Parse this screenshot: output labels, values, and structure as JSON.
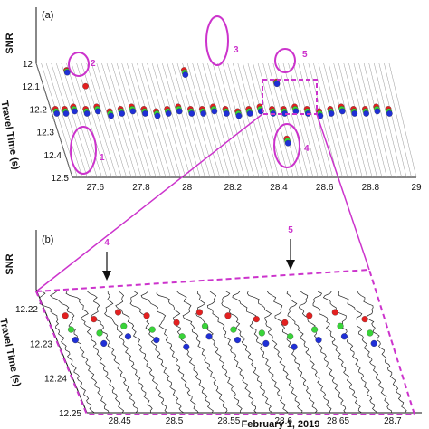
{
  "colors": {
    "magenta": "#cc33cc",
    "red": "#e32020",
    "green": "#39d439",
    "blue": "#1f2fd6",
    "trace": "#222222",
    "grid": "#9a9a9a"
  },
  "chart_data": [
    {
      "type": "scatter",
      "panel_label": "(a)",
      "xlabel": "",
      "ylabel": "Travel Time (s)",
      "zlabel": "SNR",
      "x_ticks": [
        "27.6",
        "27.8",
        "28",
        "28.2",
        "28.4",
        "28.6",
        "28.8",
        "29"
      ],
      "y_ticks": [
        "12",
        "12.1",
        "12.2",
        "12.3",
        "12.4",
        "12.5"
      ],
      "xlim": [
        27.5,
        29.0
      ],
      "ylim": [
        12.0,
        12.5
      ],
      "series": [
        {
          "color": "red",
          "points": [
            [
              27.52,
              12.2
            ],
            [
              27.56,
              12.2
            ],
            [
              27.6,
              12.19
            ],
            [
              27.65,
              12.2
            ],
            [
              27.7,
              12.19
            ],
            [
              27.75,
              12.21
            ],
            [
              27.8,
              12.2
            ],
            [
              27.85,
              12.19
            ],
            [
              27.9,
              12.2
            ],
            [
              27.95,
              12.21
            ],
            [
              28.0,
              12.2
            ],
            [
              28.05,
              12.19
            ],
            [
              28.1,
              12.2
            ],
            [
              28.15,
              12.2
            ],
            [
              28.2,
              12.19
            ],
            [
              28.25,
              12.2
            ],
            [
              28.3,
              12.21
            ],
            [
              28.35,
              12.2
            ],
            [
              28.4,
              12.19
            ],
            [
              28.45,
              12.2
            ],
            [
              28.5,
              12.2
            ],
            [
              28.55,
              12.19
            ],
            [
              28.6,
              12.2
            ],
            [
              28.65,
              12.21
            ],
            [
              28.7,
              12.2
            ],
            [
              28.75,
              12.19
            ],
            [
              28.8,
              12.2
            ],
            [
              28.85,
              12.2
            ],
            [
              28.9,
              12.19
            ],
            [
              28.95,
              12.2
            ],
            [
              27.62,
              12.03
            ],
            [
              27.68,
              12.1
            ],
            [
              28.12,
              12.03
            ],
            [
              28.48,
              12.33
            ],
            [
              28.5,
              12.08
            ]
          ]
        },
        {
          "color": "green",
          "points": [
            [
              27.52,
              12.21
            ],
            [
              27.56,
              12.21
            ],
            [
              27.6,
              12.2
            ],
            [
              27.65,
              12.21
            ],
            [
              27.7,
              12.2
            ],
            [
              27.75,
              12.22
            ],
            [
              27.8,
              12.21
            ],
            [
              27.85,
              12.2
            ],
            [
              27.9,
              12.21
            ],
            [
              27.95,
              12.22
            ],
            [
              28.0,
              12.21
            ],
            [
              28.05,
              12.2
            ],
            [
              28.1,
              12.21
            ],
            [
              28.15,
              12.21
            ],
            [
              28.2,
              12.2
            ],
            [
              28.25,
              12.21
            ],
            [
              28.3,
              12.22
            ],
            [
              28.35,
              12.21
            ],
            [
              28.4,
              12.2
            ],
            [
              28.45,
              12.21
            ],
            [
              28.5,
              12.21
            ],
            [
              28.55,
              12.2
            ],
            [
              28.6,
              12.21
            ],
            [
              28.65,
              12.22
            ],
            [
              28.7,
              12.21
            ],
            [
              28.75,
              12.2
            ],
            [
              28.8,
              12.21
            ],
            [
              28.85,
              12.21
            ],
            [
              28.9,
              12.2
            ],
            [
              28.95,
              12.21
            ],
            [
              27.62,
              12.035
            ],
            [
              28.12,
              12.04
            ],
            [
              28.48,
              12.34
            ],
            [
              28.5,
              12.085
            ]
          ]
        },
        {
          "color": "blue",
          "points": [
            [
              27.52,
              12.22
            ],
            [
              27.56,
              12.22
            ],
            [
              27.6,
              12.21
            ],
            [
              27.65,
              12.22
            ],
            [
              27.7,
              12.21
            ],
            [
              27.75,
              12.23
            ],
            [
              27.8,
              12.22
            ],
            [
              27.85,
              12.21
            ],
            [
              27.9,
              12.22
            ],
            [
              27.95,
              12.23
            ],
            [
              28.0,
              12.22
            ],
            [
              28.05,
              12.21
            ],
            [
              28.1,
              12.22
            ],
            [
              28.15,
              12.22
            ],
            [
              28.2,
              12.21
            ],
            [
              28.25,
              12.22
            ],
            [
              28.3,
              12.23
            ],
            [
              28.35,
              12.22
            ],
            [
              28.4,
              12.21
            ],
            [
              28.45,
              12.22
            ],
            [
              28.5,
              12.22
            ],
            [
              28.55,
              12.21
            ],
            [
              28.6,
              12.22
            ],
            [
              28.65,
              12.23
            ],
            [
              28.7,
              12.22
            ],
            [
              28.75,
              12.21
            ],
            [
              28.8,
              12.22
            ],
            [
              28.85,
              12.22
            ],
            [
              28.9,
              12.21
            ],
            [
              28.95,
              12.22
            ],
            [
              27.62,
              12.04
            ],
            [
              28.12,
              12.05
            ],
            [
              28.48,
              12.35
            ],
            [
              28.5,
              12.09
            ]
          ]
        }
      ],
      "annotations": [
        "1",
        "2",
        "3",
        "4",
        "5"
      ],
      "grid": true
    },
    {
      "type": "line",
      "panel_label": "(b)",
      "xlabel": "February 1, 2019",
      "ylabel": "Travel Time (s)",
      "zlabel": "SNR",
      "x_ticks": [
        "28.45",
        "28.5",
        "28.55",
        "28.6",
        "28.65",
        "28.7"
      ],
      "y_ticks": [
        "12.22",
        "12.23",
        "12.24",
        "12.25"
      ],
      "xlim": [
        28.42,
        28.72
      ],
      "ylim": [
        12.215,
        12.25
      ],
      "arrow_labels": [
        "4",
        "5"
      ],
      "picks": {
        "red": [
          12.222,
          12.223,
          12.221,
          12.222,
          12.224,
          12.221,
          12.222,
          12.223,
          12.224,
          12.222,
          12.221,
          12.223
        ],
        "green": [
          12.226,
          12.227,
          12.225,
          12.226,
          12.228,
          12.225,
          12.226,
          12.227,
          12.228,
          12.226,
          12.225,
          12.227
        ],
        "blue": [
          12.229,
          12.23,
          12.228,
          12.229,
          12.231,
          12.228,
          12.229,
          12.23,
          12.231,
          12.229,
          12.228,
          12.23
        ]
      }
    }
  ]
}
